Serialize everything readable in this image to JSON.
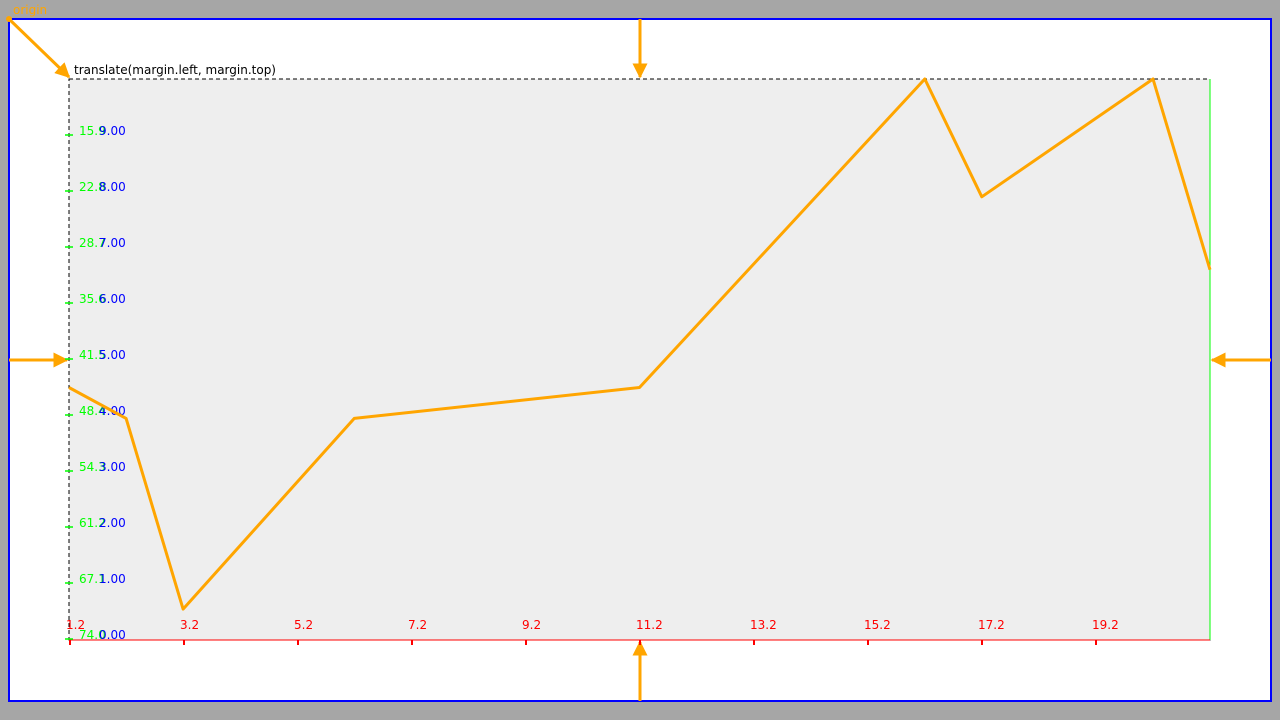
{
  "labels": {
    "origin": "origin",
    "translate": "translate(margin.left, margin.top)"
  },
  "colors": {
    "background": "#a6a6a6",
    "svg_fill": "#ffffff",
    "svg_border": "#0000ff",
    "plot_fill": "#eeeeee",
    "plot_border": "#000000",
    "arrow": "#ffa500",
    "line": "#ffa500",
    "x_axis": "#ff0000",
    "y_axis_left": "#00ff00",
    "y_axis_right": "#0000ff",
    "right_edge": "#00ff00"
  },
  "chart_data": {
    "type": "line",
    "x_ticks": [
      "1.2",
      "3.2",
      "5.2",
      "7.2",
      "9.2",
      "11.2",
      "13.2",
      "15.2",
      "17.2",
      "19.2"
    ],
    "y_left_ticks": [
      "74.0",
      "67.1",
      "61.2",
      "54.3",
      "48.4",
      "41.5",
      "35.6",
      "28.7",
      "22.8",
      "15.9"
    ],
    "y_right_ticks": [
      "0.00",
      "1.00",
      "2.00",
      "3.00",
      "4.00",
      "5.00",
      "6.00",
      "7.00",
      "8.00",
      "9.00"
    ],
    "xlim": [
      1.2,
      21.2
    ],
    "ylim": [
      0,
      10
    ],
    "points": [
      {
        "x": 1.2,
        "y": 4.5
      },
      {
        "x": 2.2,
        "y": 3.95
      },
      {
        "x": 3.2,
        "y": 0.55
      },
      {
        "x": 6.2,
        "y": 3.95
      },
      {
        "x": 11.2,
        "y": 4.5
      },
      {
        "x": 16.2,
        "y": 10.0
      },
      {
        "x": 17.2,
        "y": 7.9
      },
      {
        "x": 20.2,
        "y": 10.0
      },
      {
        "x": 21.2,
        "y": 6.6
      }
    ]
  }
}
